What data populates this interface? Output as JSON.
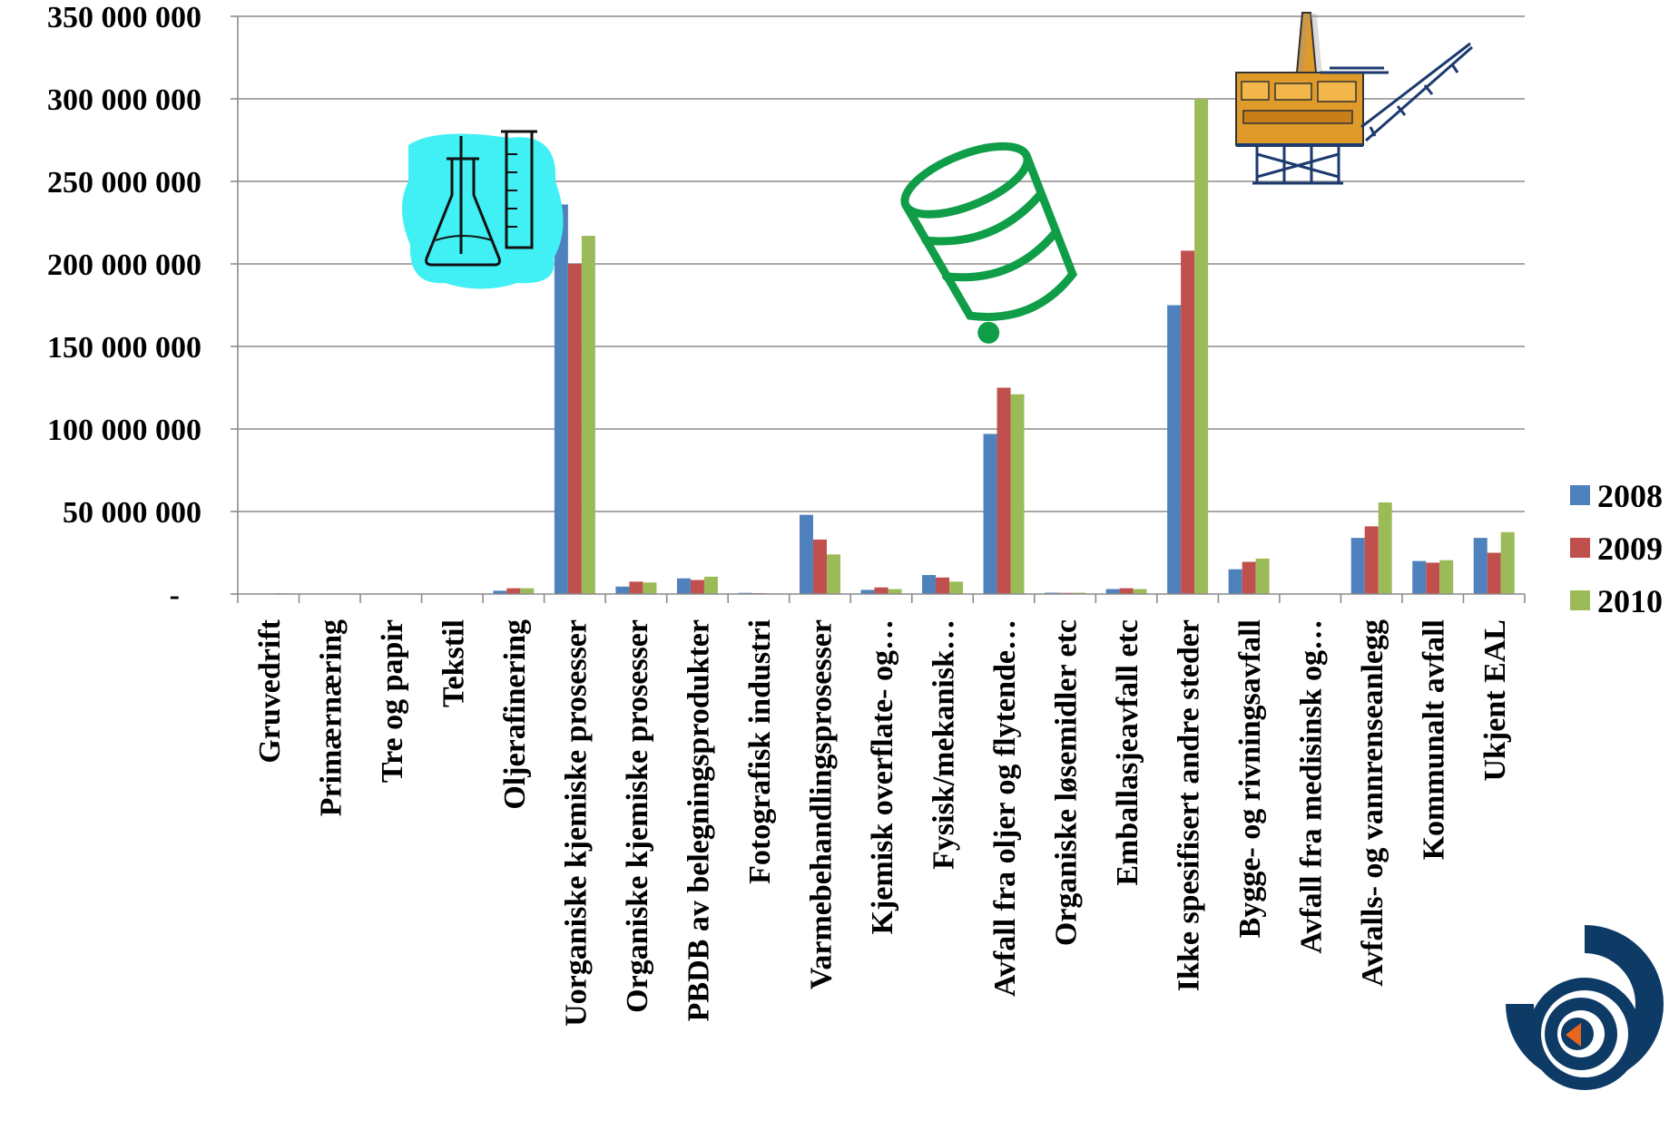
{
  "chart_data": {
    "type": "bar",
    "categories": [
      "Gruvedrift",
      "Primærnæring",
      "Tre og papir",
      "Tekstil",
      "Oljerafinering",
      "Uorganiske kjemiske prosesser",
      "Organiske kjemiske prosesser",
      "PBDB av belegningsprodukter",
      "Fotografisk industri",
      "Varmebehandlingsprosesser",
      "Kjemisk overflate- og…",
      "Fysisk/mekanisk…",
      "Avfall fra oljer og flytende…",
      "Organiske løsemidler etc",
      "Emballasjeavfall etc",
      "Ikke spesifisert andre steder",
      "Bygge- og rivningsavfall",
      "Avfall fra medisinsk og…",
      "Avfalls- og vannrenseanlegg",
      "Kommunalt avfall",
      "Ukjent EAL"
    ],
    "series": [
      {
        "name": "2008",
        "color": "#4F81BD",
        "values": [
          200000,
          0,
          0,
          0,
          2000000,
          236000000,
          4500000,
          9500000,
          700000,
          48000000,
          2500000,
          11500000,
          97000000,
          800000,
          3000000,
          175000000,
          15000000,
          0,
          34000000,
          20000000,
          34000000
        ]
      },
      {
        "name": "2009",
        "color": "#C0504D",
        "values": [
          100000,
          0,
          0,
          0,
          3500000,
          200000000,
          7500000,
          8500000,
          500000,
          33000000,
          4000000,
          10000000,
          125000000,
          700000,
          3500000,
          208000000,
          19500000,
          0,
          41000000,
          19000000,
          25000000
        ]
      },
      {
        "name": "2010",
        "color": "#9BBB59",
        "values": [
          500000,
          0,
          0,
          0,
          3500000,
          217000000,
          7000000,
          10500000,
          400000,
          24000000,
          3000000,
          7500000,
          121000000,
          800000,
          3000000,
          300000000,
          21500000,
          0,
          55500000,
          20500000,
          37500000
        ]
      }
    ],
    "yticks": [
      "-",
      "50 000 000",
      "100 000 000",
      "150 000 000",
      "200 000 000",
      "250 000 000",
      "300 000 000",
      "350 000 000"
    ],
    "ylim": [
      0,
      350000000
    ],
    "ystep": 50000000,
    "grid": true,
    "legend_position": "right"
  },
  "decorations": [
    "lab-flask-clipart",
    "green-barrel-clipart",
    "oil-platform-clipart",
    "brand-logo"
  ]
}
